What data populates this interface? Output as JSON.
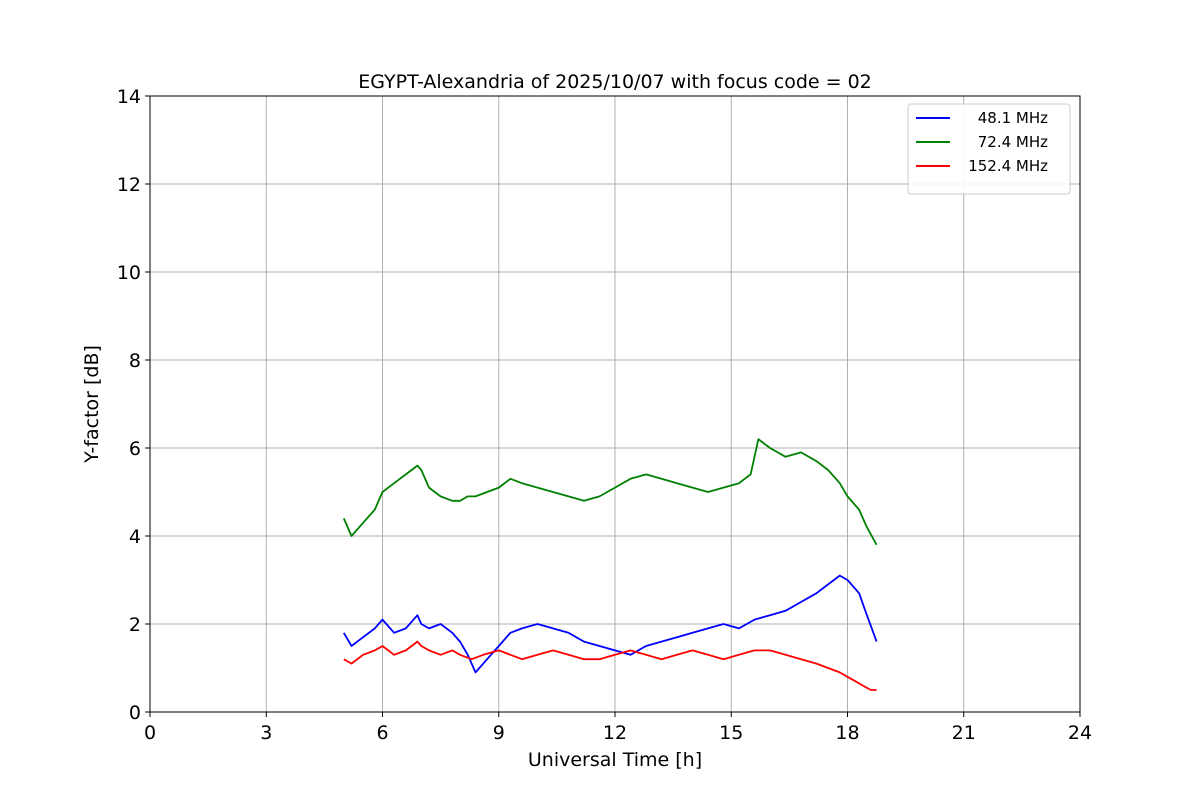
{
  "chart_data": {
    "type": "line",
    "title": "EGYPT-Alexandria of 2025/10/07 with focus code = 02",
    "xlabel": "Universal Time [h]",
    "ylabel": "Y-factor [dB]",
    "xlim": [
      0,
      24
    ],
    "ylim": [
      0,
      14
    ],
    "xticks": [
      0,
      3,
      6,
      9,
      12,
      15,
      18,
      21,
      24
    ],
    "yticks": [
      0,
      2,
      4,
      6,
      8,
      10,
      12,
      14
    ],
    "grid": true,
    "legend_position": "top-right",
    "series": [
      {
        "name": "48.1 MHz",
        "color": "#0000ff",
        "x": [
          5.0,
          5.2,
          5.5,
          5.8,
          6.0,
          6.3,
          6.6,
          6.9,
          7.0,
          7.2,
          7.5,
          7.8,
          8.0,
          8.2,
          8.4,
          8.5,
          8.7,
          9.0,
          9.3,
          9.6,
          10.0,
          10.4,
          10.8,
          11.2,
          11.6,
          12.0,
          12.4,
          12.8,
          13.2,
          13.6,
          14.0,
          14.4,
          14.8,
          15.2,
          15.6,
          16.0,
          16.4,
          16.8,
          17.2,
          17.5,
          17.8,
          18.0,
          18.3,
          18.5,
          18.75
        ],
        "values": [
          1.8,
          1.5,
          1.7,
          1.9,
          2.1,
          1.8,
          1.9,
          2.2,
          2.0,
          1.9,
          2.0,
          1.8,
          1.6,
          1.3,
          0.9,
          1.0,
          1.2,
          1.5,
          1.8,
          1.9,
          2.0,
          1.9,
          1.8,
          1.6,
          1.5,
          1.4,
          1.3,
          1.5,
          1.6,
          1.7,
          1.8,
          1.9,
          2.0,
          1.9,
          2.1,
          2.2,
          2.3,
          2.5,
          2.7,
          2.9,
          3.1,
          3.0,
          2.7,
          2.2,
          1.6
        ]
      },
      {
        "name": "72.4 MHz",
        "color": "#008000",
        "x": [
          5.0,
          5.2,
          5.5,
          5.8,
          6.0,
          6.3,
          6.6,
          6.9,
          7.0,
          7.2,
          7.5,
          7.8,
          8.0,
          8.2,
          8.4,
          8.7,
          9.0,
          9.3,
          9.6,
          10.0,
          10.4,
          10.8,
          11.2,
          11.6,
          12.0,
          12.4,
          12.8,
          13.2,
          13.6,
          14.0,
          14.4,
          14.8,
          15.2,
          15.5,
          15.7,
          16.0,
          16.4,
          16.8,
          17.2,
          17.5,
          17.8,
          18.0,
          18.3,
          18.5,
          18.75
        ],
        "values": [
          4.4,
          4.0,
          4.3,
          4.6,
          5.0,
          5.2,
          5.4,
          5.6,
          5.5,
          5.1,
          4.9,
          4.8,
          4.8,
          4.9,
          4.9,
          5.0,
          5.1,
          5.3,
          5.2,
          5.1,
          5.0,
          4.9,
          4.8,
          4.9,
          5.1,
          5.3,
          5.4,
          5.3,
          5.2,
          5.1,
          5.0,
          5.1,
          5.2,
          5.4,
          6.2,
          6.0,
          5.8,
          5.9,
          5.7,
          5.5,
          5.2,
          4.9,
          4.6,
          4.2,
          3.8
        ]
      },
      {
        "name": "152.4 MHz",
        "color": "#ff0000",
        "x": [
          5.0,
          5.2,
          5.5,
          5.8,
          6.0,
          6.3,
          6.6,
          6.9,
          7.0,
          7.2,
          7.5,
          7.8,
          8.0,
          8.3,
          8.6,
          9.0,
          9.3,
          9.6,
          10.0,
          10.4,
          10.8,
          11.2,
          11.6,
          12.0,
          12.4,
          12.8,
          13.2,
          13.6,
          14.0,
          14.4,
          14.8,
          15.2,
          15.6,
          16.0,
          16.4,
          16.8,
          17.2,
          17.5,
          17.8,
          18.0,
          18.2,
          18.4,
          18.6,
          18.75
        ],
        "values": [
          1.2,
          1.1,
          1.3,
          1.4,
          1.5,
          1.3,
          1.4,
          1.6,
          1.5,
          1.4,
          1.3,
          1.4,
          1.3,
          1.2,
          1.3,
          1.4,
          1.3,
          1.2,
          1.3,
          1.4,
          1.3,
          1.2,
          1.2,
          1.3,
          1.4,
          1.3,
          1.2,
          1.3,
          1.4,
          1.3,
          1.2,
          1.3,
          1.4,
          1.4,
          1.3,
          1.2,
          1.1,
          1.0,
          0.9,
          0.8,
          0.7,
          0.6,
          0.5,
          0.5
        ]
      }
    ]
  }
}
